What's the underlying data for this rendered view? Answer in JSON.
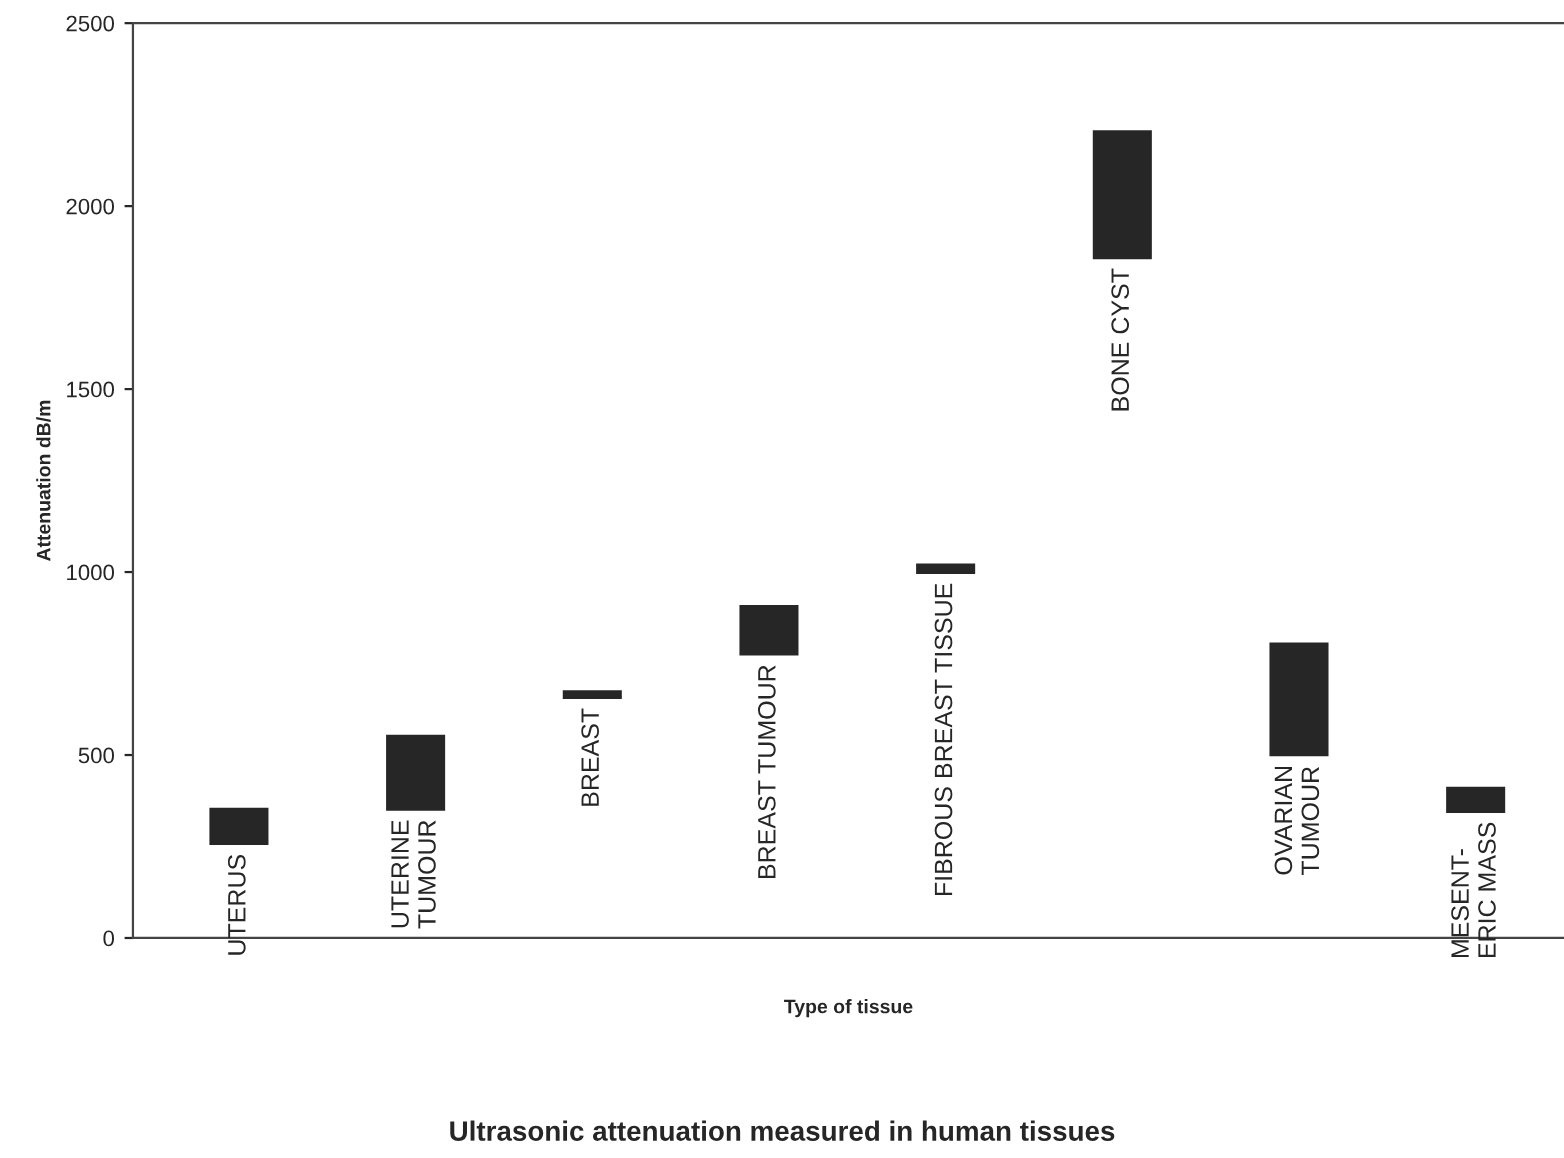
{
  "chart_data": {
    "type": "bar",
    "title": "Ultrasonic attenuation measured in human tissues",
    "xlabel": "Type of tissue",
    "ylabel": "Attenuation dB/m",
    "categories": [
      "UTERUS",
      "UTERINE\nTUMOUR",
      "BREAST",
      "BREAST TUMOUR",
      "FIBROUS BREAST TISSUE",
      "BONE CYST",
      "OVARIAN\nTUMOUR",
      "MESENT-\nERIC MASS"
    ],
    "base": [
      250,
      344,
      649,
      768,
      991,
      1851,
      493,
      338
    ],
    "values": [
      110,
      215,
      32,
      146,
      36,
      360,
      318,
      79
    ],
    "color": "#262626",
    "ylim": [
      0,
      2500
    ],
    "yticks": [
      0,
      500,
      1000,
      1500,
      2000,
      2500
    ],
    "grid": false,
    "legend": false
  }
}
